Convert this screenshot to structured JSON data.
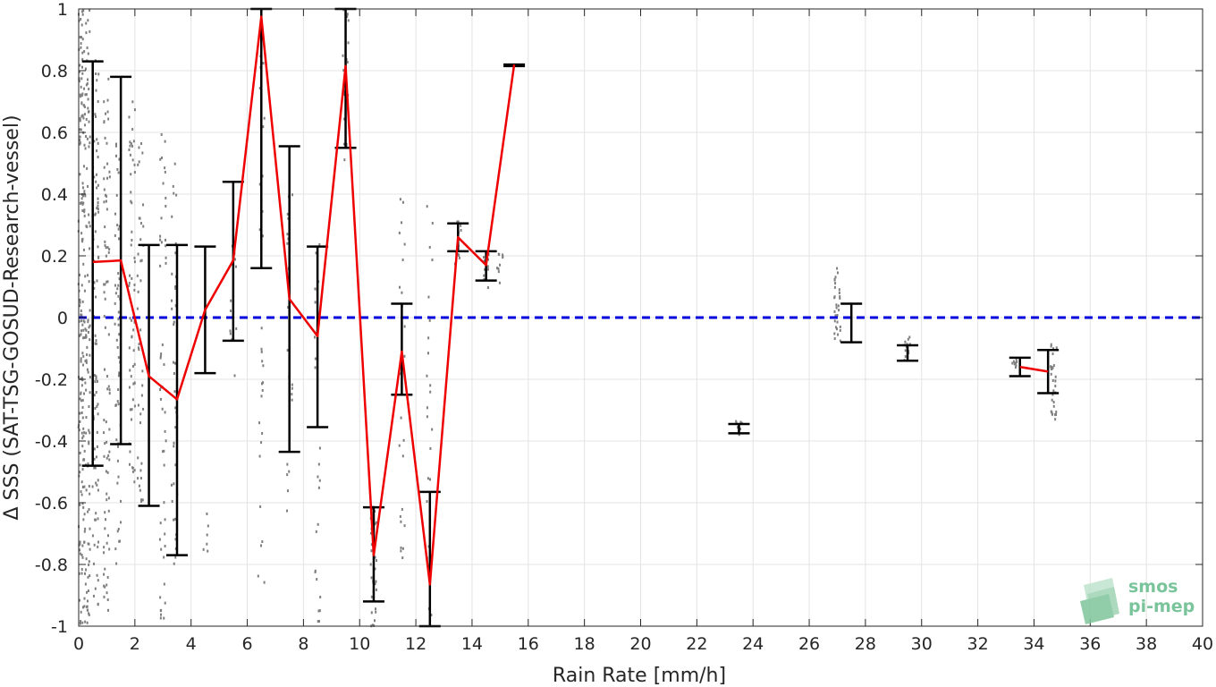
{
  "chart_data": {
    "type": "scatter",
    "xlabel": "Rain Rate [mm/h]",
    "ylabel": "Δ SSS (SAT-TSG-GOSUD-Research-vessel)",
    "xlim": [
      0,
      40
    ],
    "ylim": [
      -1,
      1
    ],
    "x_ticks": [
      "0",
      "2",
      "4",
      "6",
      "8",
      "10",
      "12",
      "14",
      "16",
      "18",
      "20",
      "22",
      "24",
      "26",
      "28",
      "30",
      "32",
      "34",
      "36",
      "38",
      "40"
    ],
    "y_ticks": [
      "-1",
      "-0.8",
      "-0.6",
      "-0.4",
      "-0.2",
      "0",
      "0.2",
      "0.4",
      "0.6",
      "0.8",
      "1"
    ],
    "grid": true,
    "reference_line": {
      "y": 0,
      "style": "dashed",
      "color": "#0000dd"
    },
    "error_bars": [
      {
        "x": 0.5,
        "low": -0.48,
        "high": 0.83
      },
      {
        "x": 1.5,
        "low": -0.41,
        "high": 0.78
      },
      {
        "x": 2.5,
        "low": -0.61,
        "high": 0.235
      },
      {
        "x": 3.5,
        "low": -0.77,
        "high": 0.235
      },
      {
        "x": 4.5,
        "low": -0.18,
        "high": 0.23
      },
      {
        "x": 5.5,
        "low": -0.075,
        "high": 0.44
      },
      {
        "x": 6.5,
        "low": 0.16,
        "high": 1.0
      },
      {
        "x": 7.5,
        "low": -0.435,
        "high": 0.555
      },
      {
        "x": 8.5,
        "low": -0.355,
        "high": 0.23
      },
      {
        "x": 9.5,
        "low": 0.55,
        "high": 1.0
      },
      {
        "x": 10.5,
        "low": -0.92,
        "high": -0.615
      },
      {
        "x": 11.5,
        "low": -0.25,
        "high": 0.045
      },
      {
        "x": 12.5,
        "low": -1.0,
        "high": -0.565
      },
      {
        "x": 13.5,
        "low": 0.215,
        "high": 0.305
      },
      {
        "x": 14.5,
        "low": 0.12,
        "high": 0.215
      },
      {
        "x": 15.5,
        "low": 0.815,
        "high": 0.82
      },
      {
        "x": 23.5,
        "low": -0.375,
        "high": -0.345
      },
      {
        "x": 27.5,
        "low": -0.08,
        "high": 0.045
      },
      {
        "x": 29.5,
        "low": -0.14,
        "high": -0.09
      },
      {
        "x": 33.5,
        "low": -0.19,
        "high": -0.13
      },
      {
        "x": 34.5,
        "low": -0.245,
        "high": -0.105
      }
    ],
    "mean_series": [
      {
        "segment": [
          {
            "x": 0.5,
            "y": 0.18
          },
          {
            "x": 1.5,
            "y": 0.185
          },
          {
            "x": 2.5,
            "y": -0.19
          },
          {
            "x": 3.5,
            "y": -0.265
          },
          {
            "x": 4.5,
            "y": 0.025
          },
          {
            "x": 5.5,
            "y": 0.185
          },
          {
            "x": 6.5,
            "y": 0.975
          },
          {
            "x": 7.5,
            "y": 0.06
          },
          {
            "x": 8.5,
            "y": -0.06
          },
          {
            "x": 9.5,
            "y": 0.815
          },
          {
            "x": 10.5,
            "y": -0.77
          },
          {
            "x": 11.5,
            "y": -0.11
          },
          {
            "x": 12.5,
            "y": -0.865
          },
          {
            "x": 13.5,
            "y": 0.26
          },
          {
            "x": 14.5,
            "y": 0.17
          },
          {
            "x": 15.5,
            "y": 0.82
          }
        ]
      },
      {
        "segment": [
          {
            "x": 33.5,
            "y": -0.16
          },
          {
            "x": 34.5,
            "y": -0.175
          }
        ]
      }
    ],
    "scatter_clusters": [
      {
        "x": 0.1,
        "ymin": -1.0,
        "ymax": 1.0,
        "n": 160
      },
      {
        "x": 0.3,
        "ymin": -1.0,
        "ymax": 1.0,
        "n": 120
      },
      {
        "x": 0.6,
        "ymin": -0.95,
        "ymax": 0.85,
        "n": 90
      },
      {
        "x": 1.0,
        "ymin": -0.95,
        "ymax": 0.85,
        "n": 80
      },
      {
        "x": 1.4,
        "ymin": -0.8,
        "ymax": 0.6,
        "n": 60
      },
      {
        "x": 1.9,
        "ymin": -0.6,
        "ymax": 0.75,
        "n": 60
      },
      {
        "x": 2.2,
        "ymin": -0.6,
        "ymax": 0.6,
        "n": 40
      },
      {
        "x": 3.0,
        "ymin": -1.0,
        "ymax": 0.6,
        "n": 50
      },
      {
        "x": 3.4,
        "ymin": -0.8,
        "ymax": 0.55,
        "n": 40
      },
      {
        "x": 4.5,
        "ymin": -0.8,
        "ymax": -0.58,
        "n": 6
      },
      {
        "x": 5.5,
        "ymin": -0.2,
        "ymax": 0.3,
        "n": 14
      },
      {
        "x": 6.5,
        "ymin": -0.87,
        "ymax": 1.0,
        "n": 30
      },
      {
        "x": 7.5,
        "ymin": -0.63,
        "ymax": 0.55,
        "n": 20
      },
      {
        "x": 8.5,
        "ymin": -1.0,
        "ymax": 0.25,
        "n": 25
      },
      {
        "x": 9.5,
        "ymin": 0.5,
        "ymax": 1.0,
        "n": 20
      },
      {
        "x": 10.5,
        "ymin": -1.0,
        "ymax": -0.6,
        "n": 30
      },
      {
        "x": 11.5,
        "ymin": -0.8,
        "ymax": 0.45,
        "n": 25
      },
      {
        "x": 12.5,
        "ymin": -1.0,
        "ymax": 0.38,
        "n": 25
      },
      {
        "x": 13.5,
        "ymin": 0.16,
        "ymax": 0.32,
        "n": 12
      },
      {
        "x": 14.5,
        "ymin": 0.09,
        "ymax": 0.23,
        "n": 15
      },
      {
        "x": 15.0,
        "ymin": 0.1,
        "ymax": 0.22,
        "n": 10
      },
      {
        "x": 23.5,
        "ymin": -0.38,
        "ymax": -0.33,
        "n": 10
      },
      {
        "x": 27.0,
        "ymin": -0.1,
        "ymax": 0.16,
        "n": 30
      },
      {
        "x": 29.5,
        "ymin": -0.15,
        "ymax": -0.06,
        "n": 12
      },
      {
        "x": 33.3,
        "ymin": -0.17,
        "ymax": -0.13,
        "n": 8
      },
      {
        "x": 34.7,
        "ymin": -0.34,
        "ymax": -0.05,
        "n": 30
      }
    ]
  },
  "logo": {
    "line1": "smos",
    "line2": "pi-mep"
  },
  "colors": {
    "mean_line": "#ee0000",
    "error_bar": "#000000",
    "scatter": "#7f7f7f",
    "grid": "#e3e3e3",
    "axis": "#262626",
    "logo": "#79c49a"
  }
}
